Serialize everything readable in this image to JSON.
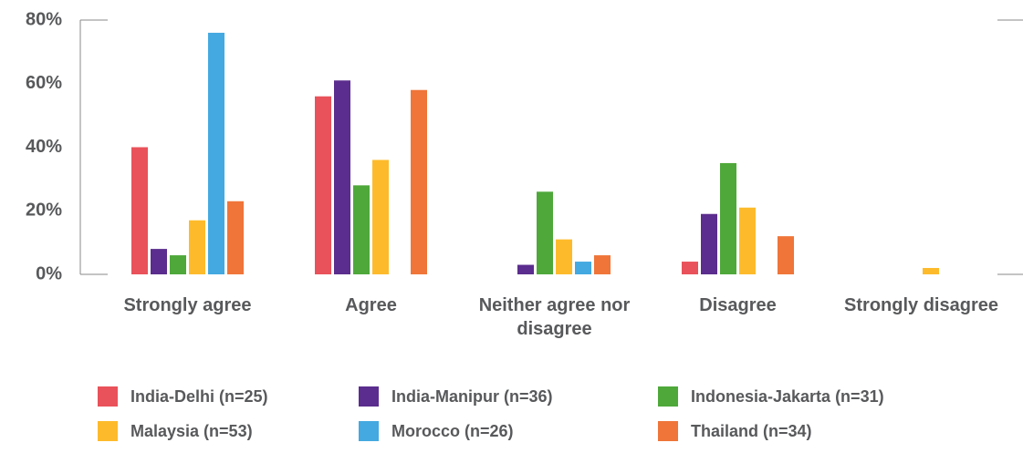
{
  "chart_data": {
    "type": "bar",
    "categories": [
      "Strongly agree",
      "Agree",
      "Neither agree nor disagree",
      "Disagree",
      "Strongly disagree"
    ],
    "series": [
      {
        "name": "India-Delhi (n=25)",
        "color": "#e9525a",
        "values": [
          40,
          56,
          0,
          4,
          0
        ]
      },
      {
        "name": "India-Manipur (n=36)",
        "color": "#5b2d8e",
        "values": [
          8,
          61,
          3,
          19,
          0
        ]
      },
      {
        "name": "Indonesia-Jakarta (n=31)",
        "color": "#4ea83a",
        "values": [
          6,
          28,
          26,
          35,
          0
        ]
      },
      {
        "name": "Malaysia (n=53)",
        "color": "#fdbb2b",
        "values": [
          17,
          36,
          11,
          21,
          2
        ]
      },
      {
        "name": "Morocco (n=26)",
        "color": "#44a9e0",
        "values": [
          76,
          0,
          4,
          0,
          0
        ]
      },
      {
        "name": "Thailand (n=34)",
        "color": "#ef7539",
        "values": [
          23,
          58,
          6,
          12,
          0
        ]
      }
    ],
    "ylim": [
      0,
      80
    ],
    "yticks": [
      {
        "value": 0,
        "label": "0%"
      },
      {
        "value": 20,
        "label": "20%"
      },
      {
        "value": 40,
        "label": "40%"
      },
      {
        "value": 60,
        "label": "60%"
      },
      {
        "value": 80,
        "label": "80%"
      }
    ],
    "grid": false,
    "legend": "bottom"
  }
}
